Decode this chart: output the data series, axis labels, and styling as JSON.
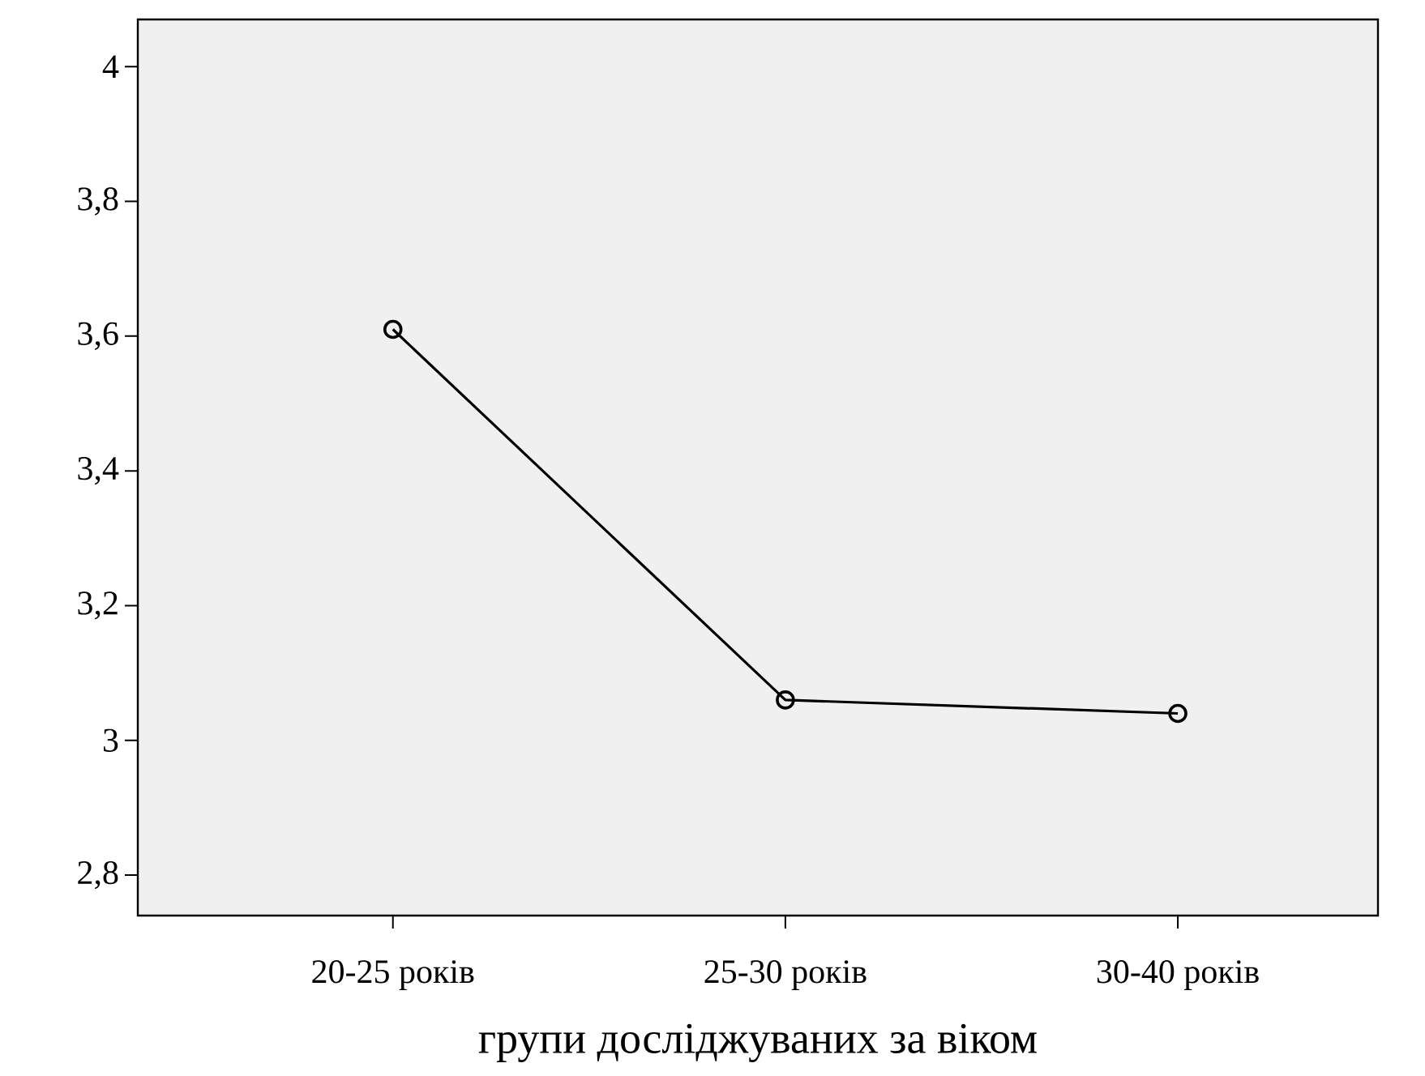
{
  "chart_data": {
    "type": "line",
    "xlabel": "групи досліджуваних за віком",
    "categories": [
      "20-25 років",
      "25-30 років",
      "30-40 років"
    ],
    "series": [
      {
        "color": "#000000",
        "values": [
          3.61,
          3.06,
          3.04
        ]
      }
    ],
    "ylim": [
      2.74,
      4.07
    ],
    "yticks": [
      {
        "value": 2.8,
        "label": "2,8"
      },
      3,
      {
        "value": 3.2,
        "label": "3,2"
      },
      {
        "value": 3.4,
        "label": "3,4"
      },
      {
        "value": 3.6,
        "label": "3,6"
      },
      {
        "value": 3.8,
        "label": "3,8"
      },
      4
    ],
    "marker": "circle",
    "line_style": "solid"
  }
}
